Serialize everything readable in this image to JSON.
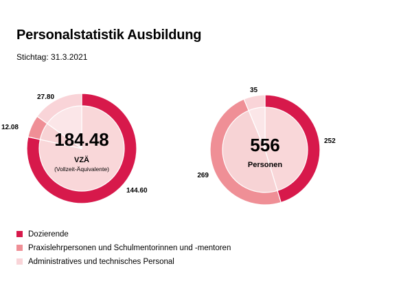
{
  "title": "Personalstatistik Ausbildung",
  "subtitle": "Stichtag: 31.3.2021",
  "colors": {
    "dozierende": "#d7194b",
    "praxis": "#ef8f96",
    "admin": "#f9d4d8",
    "admin_inner": "#fbe6e8",
    "praxis_inner": "#f7d3d5",
    "doz_inner": "#f9d7d9"
  },
  "chart_data": [
    {
      "type": "pie",
      "center_value": "184.48",
      "center_label": "VZÄ",
      "center_sublabel": "(Vollzeit-Äquivalente)",
      "categories": [
        "Dozierende",
        "Praxislehrpersonen und Schulmentorinnen und -mentoren",
        "Administratives und technisches Personal"
      ],
      "values": [
        144.6,
        12.08,
        27.8
      ],
      "value_labels": [
        "144.60",
        "12.08",
        "27.80"
      ]
    },
    {
      "type": "pie",
      "center_value": "556",
      "center_label": "Personen",
      "center_sublabel": "",
      "categories": [
        "Dozierende",
        "Praxislehrpersonen und Schulmentorinnen und -mentoren",
        "Administratives und technisches Personal"
      ],
      "values": [
        252,
        269,
        35
      ],
      "value_labels": [
        "252",
        "269",
        "35"
      ]
    }
  ],
  "legend": [
    {
      "label": "Dozierende",
      "color": "#d7194b"
    },
    {
      "label": "Praxislehrpersonen und Schulmentorinnen und -mentoren",
      "color": "#ef8f96"
    },
    {
      "label": "Administratives und technisches Personal",
      "color": "#f9d4d8"
    }
  ]
}
